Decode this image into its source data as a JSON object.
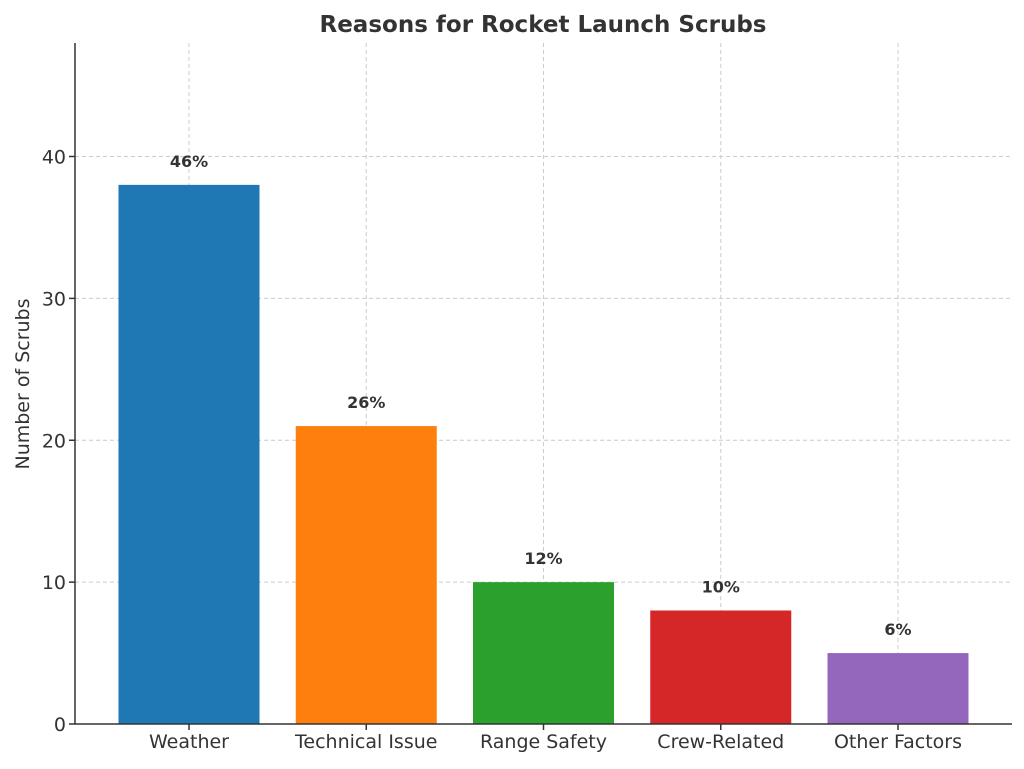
{
  "chart_data": {
    "type": "bar",
    "title": "Reasons for Rocket Launch Scrubs",
    "xlabel": "",
    "ylabel": "Number of Scrubs",
    "categories": [
      "Weather",
      "Technical Issue",
      "Range Safety",
      "Crew-Related",
      "Other Factors"
    ],
    "values": [
      38,
      21,
      10,
      8,
      5
    ],
    "data_labels": [
      "46%",
      "26%",
      "12%",
      "10%",
      "6%"
    ],
    "colors": [
      "#1f77b4",
      "#ff7f0e",
      "#2ca02c",
      "#d62728",
      "#9467bd"
    ],
    "ylim": [
      0,
      48
    ],
    "yticks": [
      0,
      10,
      20,
      30,
      40
    ],
    "grid": true,
    "legend": "none"
  }
}
